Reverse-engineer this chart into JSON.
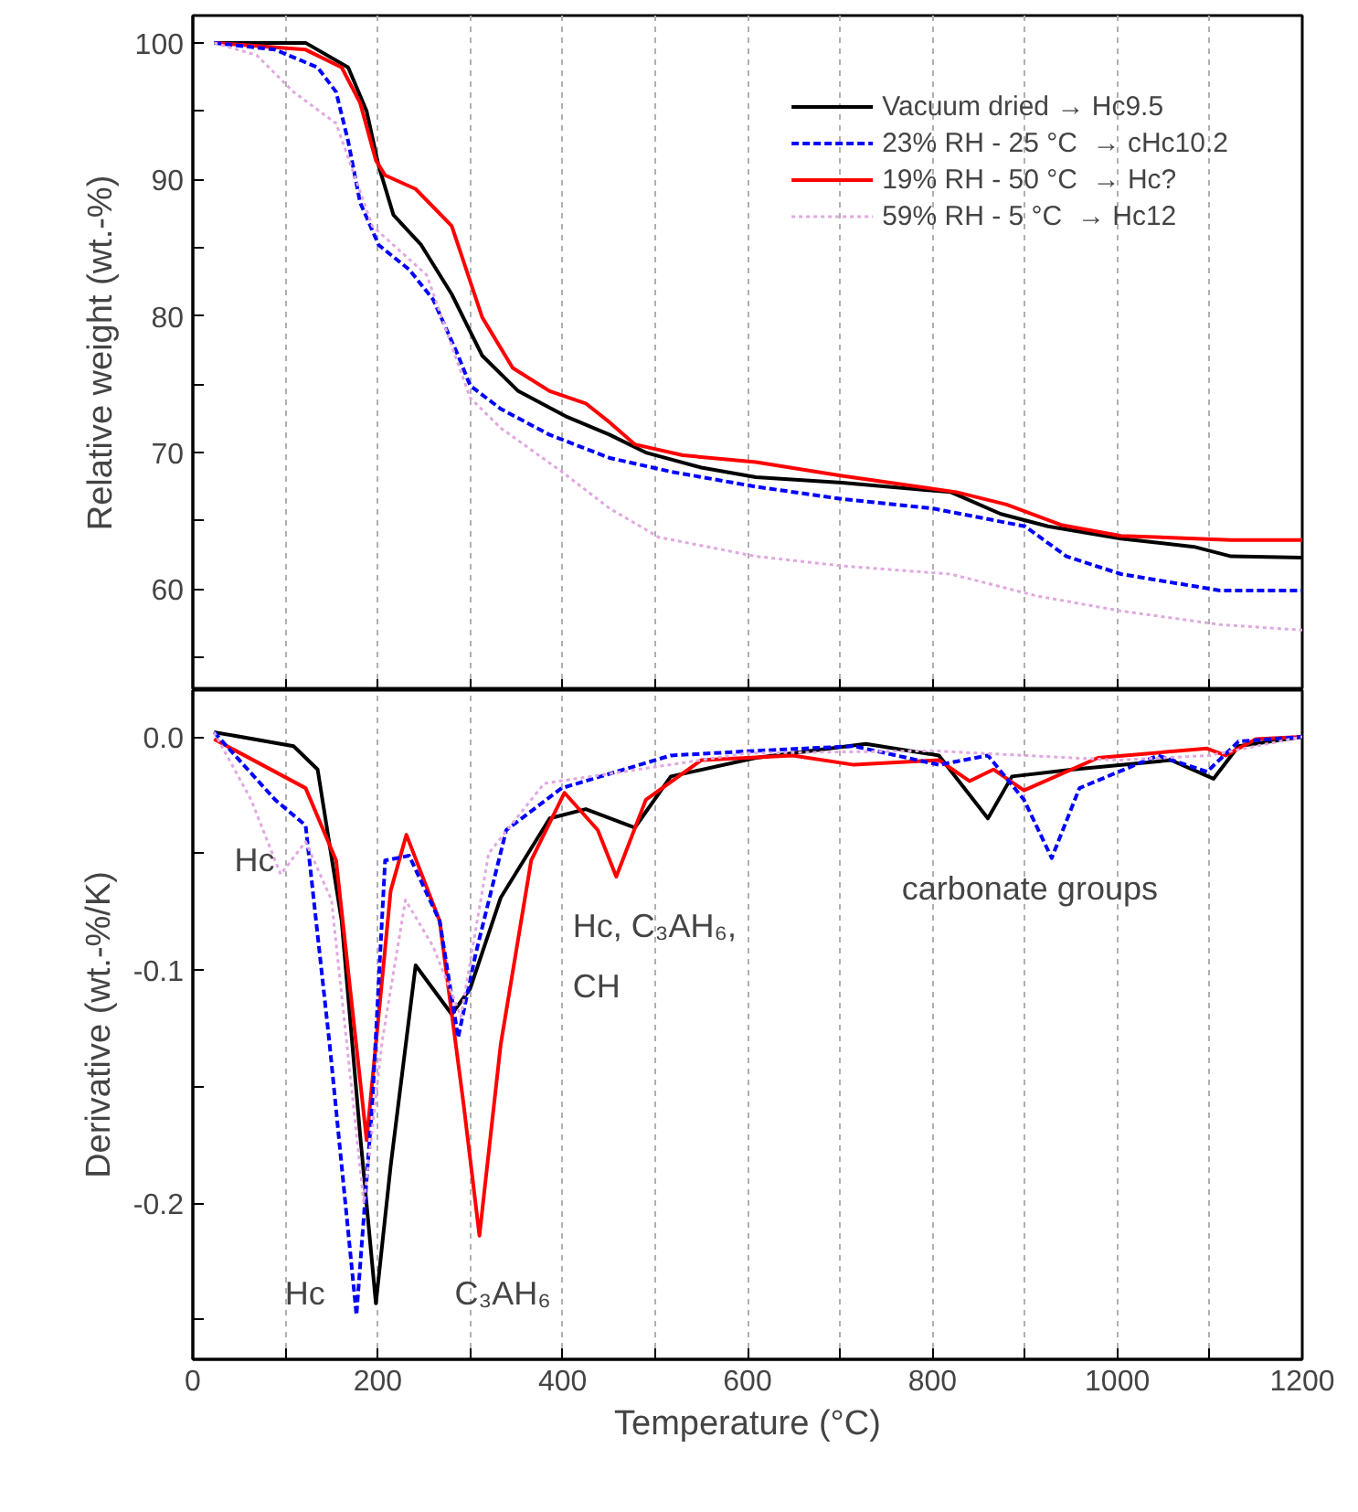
{
  "chart_data": [
    {
      "type": "line",
      "ylabel": "Relative weight (wt.-%)",
      "xlim": [
        0,
        1200
      ],
      "ylim": [
        52.6,
        102
      ],
      "xticks": [
        0,
        {
          "value": 100,
          "label": null
        },
        200,
        {
          "value": 300,
          "label": null
        },
        400,
        {
          "value": 500,
          "label": null
        },
        600,
        {
          "value": 700,
          "label": null
        },
        800,
        {
          "value": 900,
          "label": null
        },
        1000,
        {
          "value": 1100,
          "label": null
        },
        1200
      ],
      "yticks": [
        {
          "value": 55,
          "label": null
        },
        60,
        {
          "value": 65,
          "label": null
        },
        70,
        {
          "value": 75,
          "label": null
        },
        80,
        {
          "value": 85,
          "label": null
        },
        90,
        {
          "value": 95,
          "label": null
        },
        100
      ],
      "grid": "x",
      "tick_labels": "y",
      "legend": "top right",
      "series": [
        {
          "name": "Vacuum dried → Hc9.5",
          "color": "#000000",
          "line_style": "solid",
          "x": [
            23,
            122,
            168,
            188,
            201,
            217,
            247,
            280,
            313,
            352,
            405,
            451,
            490,
            550,
            609,
            702,
            820,
            874,
            925,
            1004,
            1083,
            1123,
            1200
          ],
          "values": [
            100,
            100,
            98.2,
            95.0,
            91.0,
            87.4,
            85.2,
            81.6,
            77.1,
            74.5,
            72.6,
            71.3,
            70.0,
            68.9,
            68.2,
            67.8,
            67.1,
            65.5,
            64.6,
            63.7,
            63.1,
            62.4,
            62.3
          ]
        },
        {
          "name": "23% RH - 25 °C  → cHc10.2",
          "color": "#0000ff",
          "line_style": "dashed",
          "x": [
            23,
            89,
            135,
            155,
            168,
            181,
            201,
            234,
            260,
            287,
            300,
            333,
            386,
            451,
            517,
            609,
            702,
            801,
            900,
            945,
            1004,
            1111,
            1200
          ],
          "values": [
            100,
            99.5,
            98.2,
            96.4,
            92.8,
            88.3,
            85.2,
            83.4,
            81.2,
            77.1,
            74.9,
            73.2,
            71.3,
            69.6,
            68.6,
            67.5,
            66.6,
            65.9,
            64.6,
            62.4,
            61.1,
            59.9,
            59.9
          ]
        },
        {
          "name": "19% RH - 50 °C  → Hc?",
          "color": "#ff0000",
          "line_style": "solid",
          "x": [
            23,
            122,
            161,
            181,
            198,
            208,
            241,
            280,
            313,
            346,
            386,
            425,
            451,
            478,
            530,
            609,
            702,
            826,
            880,
            939,
            1004,
            1123,
            1200
          ],
          "values": [
            100,
            99.5,
            98.2,
            95.6,
            91.4,
            90.3,
            89.3,
            86.6,
            79.9,
            76.2,
            74.5,
            73.6,
            72.2,
            70.6,
            69.8,
            69.3,
            68.3,
            67.1,
            66.2,
            64.7,
            63.9,
            63.6,
            63.6
          ]
        },
        {
          "name": "59% RH - 5 °C  → Hc12",
          "color": "#e0a8e0",
          "line_style": "dotted",
          "x": [
            23,
            69,
            109,
            155,
            194,
            253,
            300,
            333,
            399,
            451,
            504,
            609,
            702,
            820,
            913,
            1004,
            1111,
            1200
          ],
          "values": [
            100,
            99.1,
            96.4,
            94.1,
            86.6,
            83.0,
            74.0,
            71.8,
            68.6,
            65.9,
            63.8,
            62.4,
            61.7,
            61.1,
            59.5,
            58.4,
            57.4,
            57.0
          ]
        }
      ]
    },
    {
      "type": "line",
      "xlabel": "Temperature (°C)",
      "ylabel": "Derivative (wt.-%/K)",
      "xlim": [
        0,
        1200
      ],
      "ylim": [
        -0.267,
        0.02
      ],
      "xticks": [
        0,
        {
          "value": 100,
          "label": null
        },
        200,
        {
          "value": 300,
          "label": null
        },
        400,
        {
          "value": 500,
          "label": null
        },
        600,
        {
          "value": 700,
          "label": null
        },
        800,
        {
          "value": 900,
          "label": null
        },
        1000,
        {
          "value": 1100,
          "label": null
        },
        1200
      ],
      "yticks": [
        {
          "value": -0.25,
          "label": null
        },
        -0.2,
        {
          "value": -0.15,
          "label": null
        },
        -0.1,
        {
          "value": -0.05,
          "label": null
        },
        {
          "value": 0,
          "label": "0.0"
        }
      ],
      "grid": "x",
      "annotations": [
        "Hc",
        "Hc",
        "C₃AH₆",
        "Hc, C₃AH₆,",
        "CH",
        "carbonate groups"
      ],
      "series": [
        {
          "color": "#000000",
          "line_style": "solid",
          "x": [
            23,
            109,
            135,
            161,
            181,
            198,
            214,
            241,
            280,
            300,
            333,
            386,
            425,
            478,
            517,
            609,
            728,
            807,
            860,
            886,
            952,
            1058,
            1104,
            1131,
            1200
          ],
          "values": [
            0.002,
            -0.004,
            -0.014,
            -0.079,
            -0.171,
            -0.243,
            -0.184,
            -0.098,
            -0.119,
            -0.108,
            -0.069,
            -0.035,
            -0.031,
            -0.039,
            -0.017,
            -0.009,
            -0.003,
            -0.008,
            -0.035,
            -0.017,
            -0.014,
            -0.01,
            -0.018,
            -0.004,
            0.0
          ]
        },
        {
          "color": "#0000ff",
          "line_style": "dashed",
          "x": [
            23,
            89,
            122,
            148,
            177,
            194,
            208,
            234,
            267,
            287,
            306,
            339,
            399,
            517,
            609,
            715,
            807,
            860,
            899,
            929,
            959,
            1044,
            1097,
            1131,
            1200
          ],
          "values": [
            0.002,
            -0.027,
            -0.038,
            -0.132,
            -0.248,
            -0.158,
            -0.053,
            -0.051,
            -0.079,
            -0.129,
            -0.093,
            -0.04,
            -0.022,
            -0.008,
            -0.006,
            -0.004,
            -0.012,
            -0.008,
            -0.027,
            -0.052,
            -0.022,
            -0.008,
            -0.015,
            -0.002,
            0.0
          ]
        },
        {
          "color": "#ff0000",
          "line_style": "solid",
          "x": [
            23,
            122,
            155,
            188,
            214,
            231,
            267,
            293,
            310,
            333,
            366,
            402,
            438,
            458,
            490,
            550,
            649,
            715,
            807,
            840,
            866,
            899,
            979,
            1097,
            1117,
            1150,
            1200
          ],
          "values": [
            -0.001,
            -0.022,
            -0.053,
            -0.173,
            -0.066,
            -0.042,
            -0.079,
            -0.158,
            -0.214,
            -0.132,
            -0.053,
            -0.024,
            -0.04,
            -0.06,
            -0.027,
            -0.01,
            -0.008,
            -0.012,
            -0.01,
            -0.019,
            -0.014,
            -0.023,
            -0.009,
            -0.005,
            -0.008,
            -0.001,
            0.0
          ]
        },
        {
          "color": "#e0a8e0",
          "line_style": "dotted",
          "x": [
            23,
            63,
            95,
            122,
            150,
            185,
            205,
            230,
            260,
            290,
            320,
            380,
            600,
            800,
            900,
            1000,
            1100,
            1200
          ],
          "values": [
            0.002,
            -0.027,
            -0.059,
            -0.045,
            -0.07,
            -0.2,
            -0.13,
            -0.07,
            -0.09,
            -0.12,
            -0.05,
            -0.02,
            -0.007,
            -0.006,
            -0.008,
            -0.01,
            -0.008,
            0.0
          ]
        }
      ]
    }
  ]
}
